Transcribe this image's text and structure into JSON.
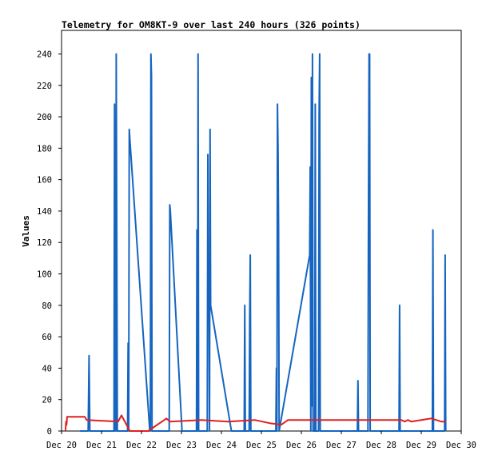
{
  "chart_data": {
    "type": "line",
    "title": "Telemetry for OM8KT-9 over last 240 hours (326 points)",
    "xlabel": "",
    "ylabel": "Values",
    "xlim": [
      "2020-12-20",
      "2020-12-30"
    ],
    "ylim": [
      0,
      255
    ],
    "x_tick_labels": [
      "Dec 20",
      "Dec 21",
      "Dec 22",
      "Dec 23",
      "Dec 24",
      "Dec 25",
      "Dec 26",
      "Dec 27",
      "Dec 28",
      "Dec 29",
      "Dec 30"
    ],
    "y_ticks": [
      0,
      20,
      40,
      60,
      80,
      100,
      120,
      140,
      160,
      180,
      200,
      220,
      240
    ],
    "grid": false,
    "series": [
      {
        "color": "#1565c0",
        "points": [
          [
            "2020-12-20 11:00",
            0
          ],
          [
            "2020-12-20 16:00",
            0
          ],
          [
            "2020-12-20 16:30",
            48
          ],
          [
            "2020-12-20 17:00",
            0
          ],
          [
            "2020-12-21 07:30",
            0
          ],
          [
            "2020-12-21 07:50",
            208
          ],
          [
            "2020-12-21 08:10",
            0
          ],
          [
            "2020-12-21 08:20",
            176
          ],
          [
            "2020-12-21 08:40",
            0
          ],
          [
            "2020-12-21 08:50",
            240
          ],
          [
            "2020-12-21 09:10",
            120
          ],
          [
            "2020-12-21 09:30",
            0
          ],
          [
            "2020-12-21 15:40",
            0
          ],
          [
            "2020-12-21 16:00",
            56
          ],
          [
            "2020-12-21 16:20",
            0
          ],
          [
            "2020-12-21 16:40",
            192
          ],
          [
            "2020-12-21 17:00",
            186
          ],
          [
            "2020-12-22 05:00",
            0
          ],
          [
            "2020-12-22 05:20",
            0
          ],
          [
            "2020-12-22 05:40",
            240
          ],
          [
            "2020-12-22 06:00",
            226
          ],
          [
            "2020-12-22 06:20",
            0
          ],
          [
            "2020-12-22 16:40",
            0
          ],
          [
            "2020-12-22 17:00",
            144
          ],
          [
            "2020-12-22 17:20",
            140
          ],
          [
            "2020-12-23 00:20",
            0
          ],
          [
            "2020-12-23 09:00",
            0
          ],
          [
            "2020-12-23 09:20",
            128
          ],
          [
            "2020-12-23 09:40",
            0
          ],
          [
            "2020-12-23 10:00",
            240
          ],
          [
            "2020-12-23 10:20",
            0
          ],
          [
            "2020-12-23 15:30",
            0
          ],
          [
            "2020-12-23 15:50",
            176
          ],
          [
            "2020-12-23 16:10",
            80
          ],
          [
            "2020-12-23 16:30",
            96
          ],
          [
            "2020-12-23 16:50",
            0
          ],
          [
            "2020-12-23 17:10",
            192
          ],
          [
            "2020-12-23 17:30",
            80
          ],
          [
            "2020-12-24 06:00",
            0
          ],
          [
            "2020-12-24 13:40",
            0
          ],
          [
            "2020-12-24 14:00",
            80
          ],
          [
            "2020-12-24 14:20",
            0
          ],
          [
            "2020-12-24 16:40",
            0
          ],
          [
            "2020-12-24 17:00",
            72
          ],
          [
            "2020-12-24 17:20",
            112
          ],
          [
            "2020-12-24 17:40",
            0
          ],
          [
            "2020-12-25 08:40",
            0
          ],
          [
            "2020-12-25 09:00",
            40
          ],
          [
            "2020-12-25 09:20",
            0
          ],
          [
            "2020-12-25 09:40",
            208
          ],
          [
            "2020-12-25 10:00",
            180
          ],
          [
            "2020-12-25 10:20",
            130
          ],
          [
            "2020-12-25 10:40",
            0
          ],
          [
            "2020-12-26 05:00",
            112
          ],
          [
            "2020-12-26 05:20",
            168
          ],
          [
            "2020-12-26 05:40",
            0
          ],
          [
            "2020-12-26 06:00",
            225
          ],
          [
            "2020-12-26 06:20",
            16
          ],
          [
            "2020-12-26 06:40",
            240
          ],
          [
            "2020-12-26 07:00",
            0
          ],
          [
            "2020-12-26 08:00",
            0
          ],
          [
            "2020-12-26 08:20",
            208
          ],
          [
            "2020-12-26 08:40",
            0
          ],
          [
            "2020-12-26 10:20",
            0
          ],
          [
            "2020-12-26 10:40",
            200
          ],
          [
            "2020-12-26 11:00",
            240
          ],
          [
            "2020-12-26 11:20",
            0
          ],
          [
            "2020-12-27 09:40",
            0
          ],
          [
            "2020-12-27 10:00",
            32
          ],
          [
            "2020-12-27 10:20",
            0
          ],
          [
            "2020-12-27 16:00",
            0
          ],
          [
            "2020-12-27 16:20",
            144
          ],
          [
            "2020-12-27 16:40",
            240
          ],
          [
            "2020-12-27 17:00",
            240
          ],
          [
            "2020-12-27 17:20",
            0
          ],
          [
            "2020-12-28 10:40",
            0
          ],
          [
            "2020-12-28 11:00",
            80
          ],
          [
            "2020-12-28 11:20",
            0
          ],
          [
            "2020-12-29 06:40",
            0
          ],
          [
            "2020-12-29 07:00",
            128
          ],
          [
            "2020-12-29 07:20",
            0
          ],
          [
            "2020-12-29 14:00",
            0
          ],
          [
            "2020-12-29 14:20",
            112
          ],
          [
            "2020-12-29 14:40",
            0
          ]
        ]
      },
      {
        "color": "#e02020",
        "points": [
          [
            "2020-12-20 02:20",
            0
          ],
          [
            "2020-12-20 02:40",
            6
          ],
          [
            "2020-12-20 03:00",
            4
          ],
          [
            "2020-12-20 03:20",
            9
          ],
          [
            "2020-12-20 14:00",
            9
          ],
          [
            "2020-12-20 15:00",
            7
          ],
          [
            "2020-12-21 10:00",
            6
          ],
          [
            "2020-12-21 12:00",
            10
          ],
          [
            "2020-12-21 17:00",
            0
          ],
          [
            "2020-12-22 04:00",
            0
          ],
          [
            "2020-12-22 15:00",
            8
          ],
          [
            "2020-12-22 17:00",
            6
          ],
          [
            "2020-12-23 12:00",
            7
          ],
          [
            "2020-12-24 04:00",
            6
          ],
          [
            "2020-12-24 20:00",
            7
          ],
          [
            "2020-12-25 05:00",
            5
          ],
          [
            "2020-12-25 12:00",
            4
          ],
          [
            "2020-12-25 16:00",
            7
          ],
          [
            "2020-12-27 08:00",
            7
          ],
          [
            "2020-12-28 12:00",
            7
          ],
          [
            "2020-12-28 14:00",
            6
          ],
          [
            "2020-12-28 16:00",
            7
          ],
          [
            "2020-12-28 18:00",
            6
          ],
          [
            "2020-12-29 06:00",
            8
          ],
          [
            "2020-12-29 12:00",
            6
          ],
          [
            "2020-12-29 14:40",
            6
          ]
        ]
      }
    ]
  }
}
